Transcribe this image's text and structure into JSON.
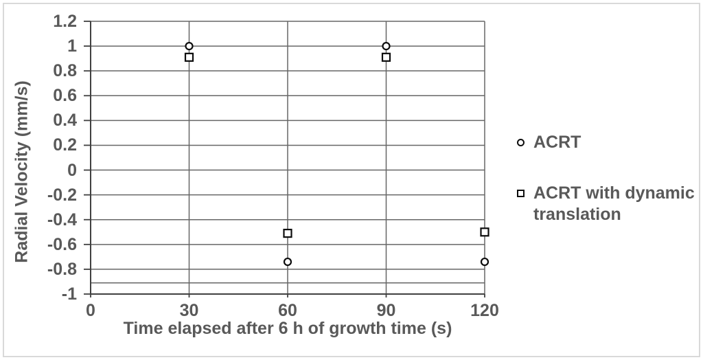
{
  "chart_data": {
    "type": "scatter",
    "xlabel": "Time elapsed after 6 h of growth time (s)",
    "ylabel": "Radial Velocity (mm/s)",
    "xlim": [
      0,
      120
    ],
    "ylim": [
      -1,
      1.2
    ],
    "xticks": {
      "values": [
        0,
        30,
        60,
        90,
        120
      ],
      "labels": [
        "0",
        "30",
        "60",
        "90",
        "120"
      ]
    },
    "yticks": {
      "values": [
        1.2,
        1,
        0.8,
        0.6,
        0.4,
        0.2,
        0,
        -0.2,
        -0.4,
        -0.6,
        -0.8,
        -1
      ],
      "labels": [
        "1.2",
        "1",
        "0.8",
        "0.6",
        "0.4",
        "0.2",
        "0",
        "-0.2",
        "-0.4",
        "-0.6",
        "-0.8",
        "-1"
      ]
    },
    "grid": true,
    "legend_position": "right",
    "series": [
      {
        "name": "ACRT",
        "marker": "circle",
        "points": [
          {
            "x": 30,
            "y": 1.0
          },
          {
            "x": 60,
            "y": -0.74
          },
          {
            "x": 90,
            "y": 1.0
          },
          {
            "x": 120,
            "y": -0.74
          }
        ]
      },
      {
        "name": "ACRT with dynamic translation",
        "marker": "square",
        "points": [
          {
            "x": 30,
            "y": 0.91
          },
          {
            "x": 60,
            "y": -0.51
          },
          {
            "x": 90,
            "y": 0.91
          },
          {
            "x": 120,
            "y": -0.5
          }
        ]
      }
    ],
    "reference_line": {
      "y": -0.91
    }
  },
  "colors": {
    "text": "#595959",
    "gridline": "#666666",
    "axis": "#404040",
    "marker": "#0d0d0d",
    "frame_border": "#d9d9d9",
    "background": "#ffffff"
  }
}
